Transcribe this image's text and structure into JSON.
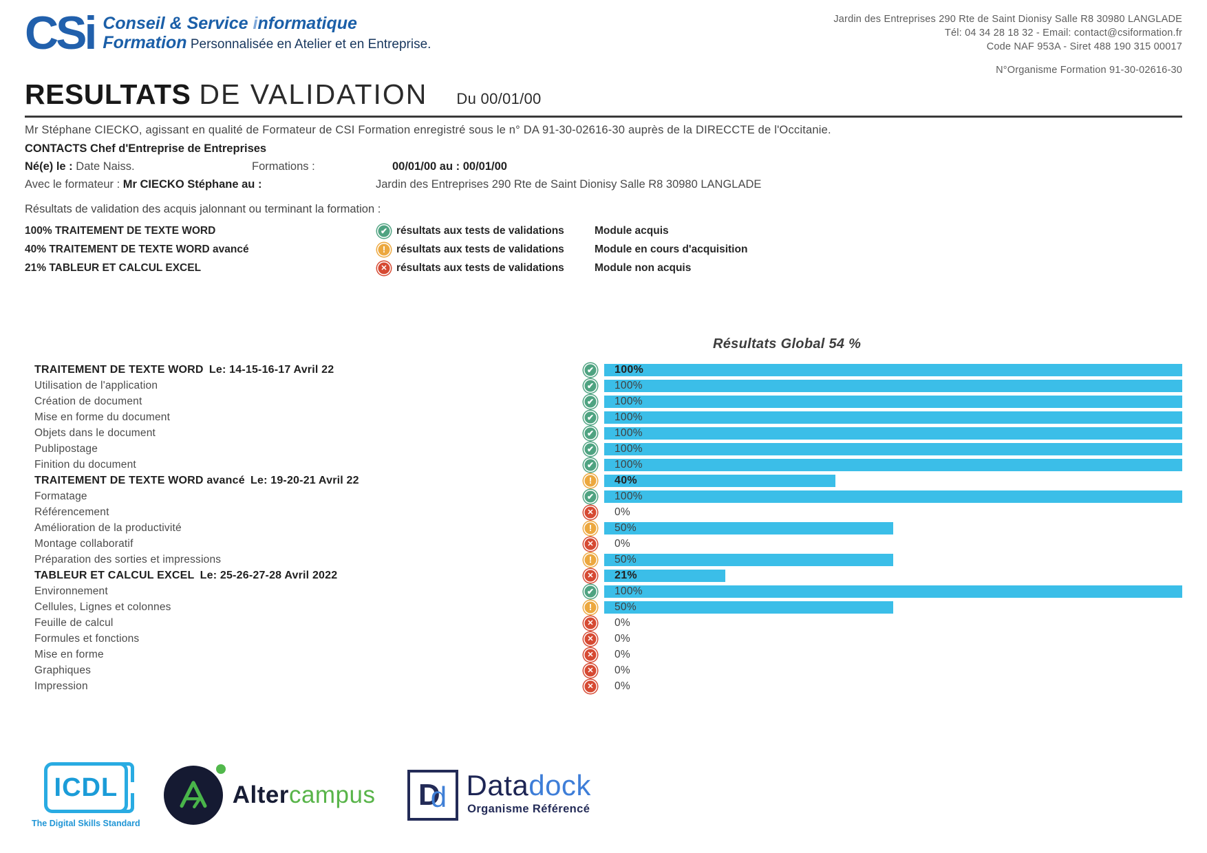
{
  "header": {
    "logo_mark": "CSi",
    "line1_bold": "Conseil & Service ",
    "line1_i": "i",
    "line1_rest": "nformatique",
    "line2_bold": "Formation",
    "line2_tagline": " Personnalisée en Atelier et en Entreprise.",
    "contact": {
      "line1": "Jardin des Entreprises 290 Rte de Saint Dionisy Salle R8 30980 LANGLADE",
      "line2": "Tél: 04 34 28 18 32 - Email: contact@csiformation.fr",
      "line3": "Code NAF 953A - Siret 488 190 315 00017",
      "line4": "N°Organisme Formation 91-30-02616-30"
    }
  },
  "title": {
    "main": "RESULTATS",
    "rest": "DE VALIDATION",
    "date": "Du 00/01/00"
  },
  "intro": "Mr Stéphane CIECKO, agissant en qualité de Formateur de CSI Formation enregistré sous le n° DA 91-30-02616-30 auprès de la DIRECCTE de l'Occitanie.",
  "contact_block": {
    "contacts_line": "CONTACTS Chef d'Entreprise de  Entreprises",
    "ne_label": "Né(e) le : ",
    "ne_value": "Date Naiss.",
    "formations_label": "Formations :",
    "formations_value": "00/01/00 au : 00/01/00",
    "formateur_label": "Avec le formateur : ",
    "formateur_name": "Mr CIECKO Stéphane au :",
    "formateur_place": "Jardin des Entreprises 290 Rte de Saint Dionisy Salle R8 30980 LANGLADE"
  },
  "results_intro": "Résultats de validation des acquis jalonnant ou terminant la formation :",
  "legend": [
    {
      "label": "100% TRAITEMENT DE TEXTE WORD",
      "icon": "check",
      "mid": "résultats aux tests de validations",
      "status": "Module acquis"
    },
    {
      "label": "40% TRAITEMENT DE TEXTE WORD avancé",
      "icon": "warning",
      "mid": "résultats aux tests de validations",
      "status": "Module en cours d'acquisition"
    },
    {
      "label": "21% TABLEUR ET CALCUL EXCEL",
      "icon": "cross",
      "mid": "résultats aux tests de validations",
      "status": "Module non acquis"
    }
  ],
  "chart_data": {
    "type": "bar",
    "title": "Résultats Global 54 %",
    "global_result_pct": 54,
    "xlim": [
      0,
      100
    ],
    "bar_color": "#3BBEE8",
    "rows": [
      {
        "label": "TRAITEMENT DE TEXTE WORD",
        "date": "Le: 14-15-16-17 Avril 22",
        "value": 100,
        "icon": "check",
        "header": true
      },
      {
        "label": "Utilisation de l'application",
        "value": 100,
        "icon": "check",
        "header": false
      },
      {
        "label": "Création de document",
        "value": 100,
        "icon": "check",
        "header": false
      },
      {
        "label": "Mise en forme du document",
        "value": 100,
        "icon": "check",
        "header": false
      },
      {
        "label": "Objets dans le document",
        "value": 100,
        "icon": "check",
        "header": false
      },
      {
        "label": "Publipostage",
        "value": 100,
        "icon": "check",
        "header": false
      },
      {
        "label": "Finition du document",
        "value": 100,
        "icon": "check",
        "header": false
      },
      {
        "label": "TRAITEMENT DE TEXTE WORD avancé",
        "date": "Le: 19-20-21 Avril 22",
        "value": 40,
        "icon": "warning",
        "header": true
      },
      {
        "label": "Formatage",
        "value": 100,
        "icon": "check",
        "header": false
      },
      {
        "label": "Référencement",
        "value": 0,
        "icon": "cross",
        "header": false
      },
      {
        "label": "Amélioration de la productivité",
        "value": 50,
        "icon": "warning",
        "header": false
      },
      {
        "label": "Montage collaboratif",
        "value": 0,
        "icon": "cross",
        "header": false
      },
      {
        "label": "Préparation des sorties et impressions",
        "value": 50,
        "icon": "warning",
        "header": false
      },
      {
        "label": "TABLEUR ET CALCUL EXCEL",
        "date": "Le: 25-26-27-28 Avril 2022",
        "value": 21,
        "icon": "cross",
        "header": true
      },
      {
        "label": "Environnement",
        "value": 100,
        "icon": "check",
        "header": false
      },
      {
        "label": "Cellules, Lignes et colonnes",
        "value": 50,
        "icon": "warning",
        "header": false
      },
      {
        "label": "Feuille de calcul",
        "value": 0,
        "icon": "cross",
        "header": false
      },
      {
        "label": "Formules et fonctions",
        "value": 0,
        "icon": "cross",
        "header": false
      },
      {
        "label": "Mise en forme",
        "value": 0,
        "icon": "cross",
        "header": false
      },
      {
        "label": "Graphiques",
        "value": 0,
        "icon": "cross",
        "header": false
      },
      {
        "label": "Impression",
        "value": 0,
        "icon": "cross",
        "header": false
      }
    ]
  },
  "footer": {
    "icdl": {
      "text": "ICDL",
      "caption": "The Digital Skills Standard"
    },
    "altercampus": {
      "alter": "Alter",
      "campus": "campus"
    },
    "datadock": {
      "d1": "D",
      "d2": "d",
      "name_data": "Data",
      "name_dock": "dock",
      "caption": "Organisme Référencé"
    }
  },
  "colors": {
    "bar_blue": "#3BBEE8",
    "icon_green": "#4FA381",
    "icon_orange": "#ECA83F",
    "icon_red": "#D64A33",
    "csi_blue": "#2160AC",
    "navy": "#17365D"
  }
}
